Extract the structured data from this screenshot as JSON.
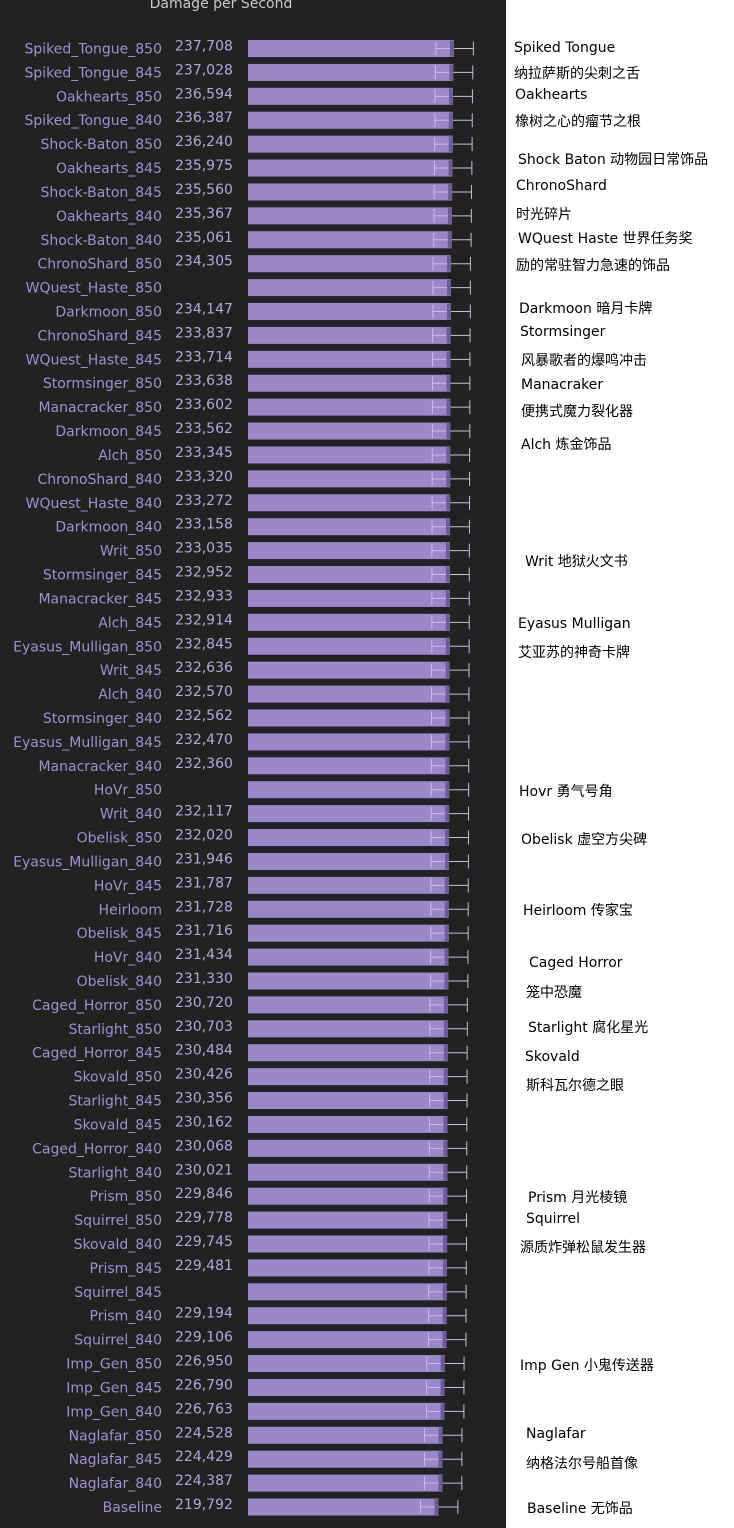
{
  "chart_data": {
    "type": "bar",
    "orientation": "horizontal",
    "title": "Damage per Second",
    "xlabel": "",
    "ylabel": "",
    "grid": false,
    "legend": "none",
    "colors": {
      "bar": "#9d87cb",
      "label": "#a08fd4",
      "value": "#b5a6e0",
      "error": "#c8bde6",
      "panel": "#222222",
      "title": "#c9c9c9"
    },
    "categories": [
      "Spiked_Tongue_850",
      "Spiked_Tongue_845",
      "Oakhearts_850",
      "Spiked_Tongue_840",
      "Shock-Baton_850",
      "Oakhearts_845",
      "Shock-Baton_845",
      "Oakhearts_840",
      "Shock-Baton_840",
      "ChronoShard_850",
      "WQuest_Haste_850",
      "Darkmoon_850",
      "ChronoShard_845",
      "WQuest_Haste_845",
      "Stormsinger_850",
      "Manacracker_850",
      "Darkmoon_845",
      "Alch_850",
      "ChronoShard_840",
      "WQuest_Haste_840",
      "Darkmoon_840",
      "Writ_850",
      "Stormsinger_845",
      "Manacracker_845",
      "Alch_845",
      "Eyasus_Mulligan_850",
      "Writ_845",
      "Alch_840",
      "Stormsinger_840",
      "Eyasus_Mulligan_845",
      "Manacracker_840",
      "HoVr_850",
      "Writ_840",
      "Obelisk_850",
      "Eyasus_Mulligan_840",
      "HoVr_845",
      "Heirloom",
      "Obelisk_845",
      "HoVr_840",
      "Obelisk_840",
      "Caged_Horror_850",
      "Starlight_850",
      "Caged_Horror_845",
      "Skovald_850",
      "Starlight_845",
      "Skovald_845",
      "Caged_Horror_840",
      "Starlight_840",
      "Prism_850",
      "Squirrel_850",
      "Skovald_840",
      "Prism_845",
      "Squirrel_845",
      "Prism_840",
      "Squirrel_840",
      "Imp_Gen_850",
      "Imp_Gen_845",
      "Imp_Gen_840",
      "Naglafar_850",
      "Naglafar_845",
      "Naglafar_840",
      "Baseline"
    ],
    "values": [
      237708,
      237028,
      236594,
      236387,
      236240,
      235975,
      235560,
      235367,
      235061,
      234305,
      234200,
      234147,
      233837,
      233714,
      233638,
      233602,
      233562,
      233345,
      233320,
      233272,
      233158,
      233035,
      232952,
      232933,
      232914,
      232845,
      232636,
      232570,
      232562,
      232470,
      232360,
      232200,
      232117,
      232020,
      231946,
      231787,
      231728,
      231716,
      231434,
      231330,
      230720,
      230703,
      230484,
      230426,
      230356,
      230162,
      230068,
      230021,
      229846,
      229778,
      229745,
      229481,
      229300,
      229194,
      229106,
      226950,
      226790,
      226763,
      224528,
      224429,
      224387,
      219792
    ],
    "value_labels": [
      "237,708",
      "237,028",
      "236,594",
      "236,387",
      "236,240",
      "235,975",
      "235,560",
      "235,367",
      "235,061",
      "234,305",
      "",
      "234,147",
      "233,837",
      "233,714",
      "233,638",
      "233,602",
      "233,562",
      "233,345",
      "233,320",
      "233,272",
      "233,158",
      "233,035",
      "232,952",
      "232,933",
      "232,914",
      "232,845",
      "232,636",
      "232,570",
      "232,562",
      "232,470",
      "232,360",
      "",
      "232,117",
      "232,020",
      "231,946",
      "231,787",
      "231,728",
      "231,716",
      "231,434",
      "231,330",
      "230,720",
      "230,703",
      "230,484",
      "230,426",
      "230,356",
      "230,162",
      "230,068",
      "230,021",
      "229,846",
      "229,778",
      "229,745",
      "229,481",
      "",
      "229,194",
      "229,106",
      "226,950",
      "226,790",
      "226,763",
      "224,528",
      "224,429",
      "224,387",
      "219,792"
    ],
    "xlim": [
      0,
      250000
    ],
    "error_spread": 5500
  },
  "annotations": [
    {
      "text": "Spiked Tongue",
      "row": 0
    },
    {
      "text": "纳拉萨斯的尖刺之舌",
      "row": 1
    },
    {
      "text": "Oakhearts",
      "row": 2
    },
    {
      "text": "橡树之心的瘤节之根",
      "row": 3
    },
    {
      "text": "Shock Baton 动物园日常饰品",
      "row": 4.6
    },
    {
      "text": "ChronoShard",
      "row": 5.8
    },
    {
      "text": "时光碎片",
      "row": 6.9
    },
    {
      "text": "WQuest Haste 世界任务奖",
      "row": 7.9
    },
    {
      "text": "励的常驻智力急速的饰品",
      "row": 9
    },
    {
      "text": "Darkmoon 暗月卡牌",
      "row": 10.8
    },
    {
      "text": "Stormsinger",
      "row": 11.9
    },
    {
      "text": "风暴歌者的爆鸣冲击",
      "row": 13
    },
    {
      "text": "Manacraker",
      "row": 14.1
    },
    {
      "text": "便携式魔力裂化器",
      "row": 15.1
    },
    {
      "text": "Alch 炼金饰品",
      "row": 16.5
    },
    {
      "text": "Writ 地狱火文书",
      "row": 21.4
    },
    {
      "text": "Eyasus Mulligan",
      "row": 24.1
    },
    {
      "text": "艾亚苏的神奇卡牌",
      "row": 25.2
    },
    {
      "text": "Hovr 勇气号角",
      "row": 31
    },
    {
      "text": "Obelisk 虚空方尖碑",
      "row": 33
    },
    {
      "text": "Heirloom 传家宝",
      "row": 36
    },
    {
      "text": "Caged Horror",
      "row": 38.3
    },
    {
      "text": "笼中恐魔",
      "row": 39.4
    },
    {
      "text": "Starlight 腐化星光",
      "row": 40.9
    },
    {
      "text": "Skovald",
      "row": 42.2
    },
    {
      "text": "斯科瓦尔德之眼",
      "row": 43.3
    },
    {
      "text": "Prism  月光棱镜",
      "row": 48
    },
    {
      "text": "Squirrel",
      "row": 49
    },
    {
      "text": "源质炸弹松鼠发生器",
      "row": 50.1
    },
    {
      "text": "Imp Gen 小鬼传送器",
      "row": 55
    },
    {
      "text": "Naglafar",
      "row": 58
    },
    {
      "text": "纳格法尔号船首像",
      "row": 59.1
    },
    {
      "text": "Baseline 无饰品",
      "row": 61
    }
  ]
}
